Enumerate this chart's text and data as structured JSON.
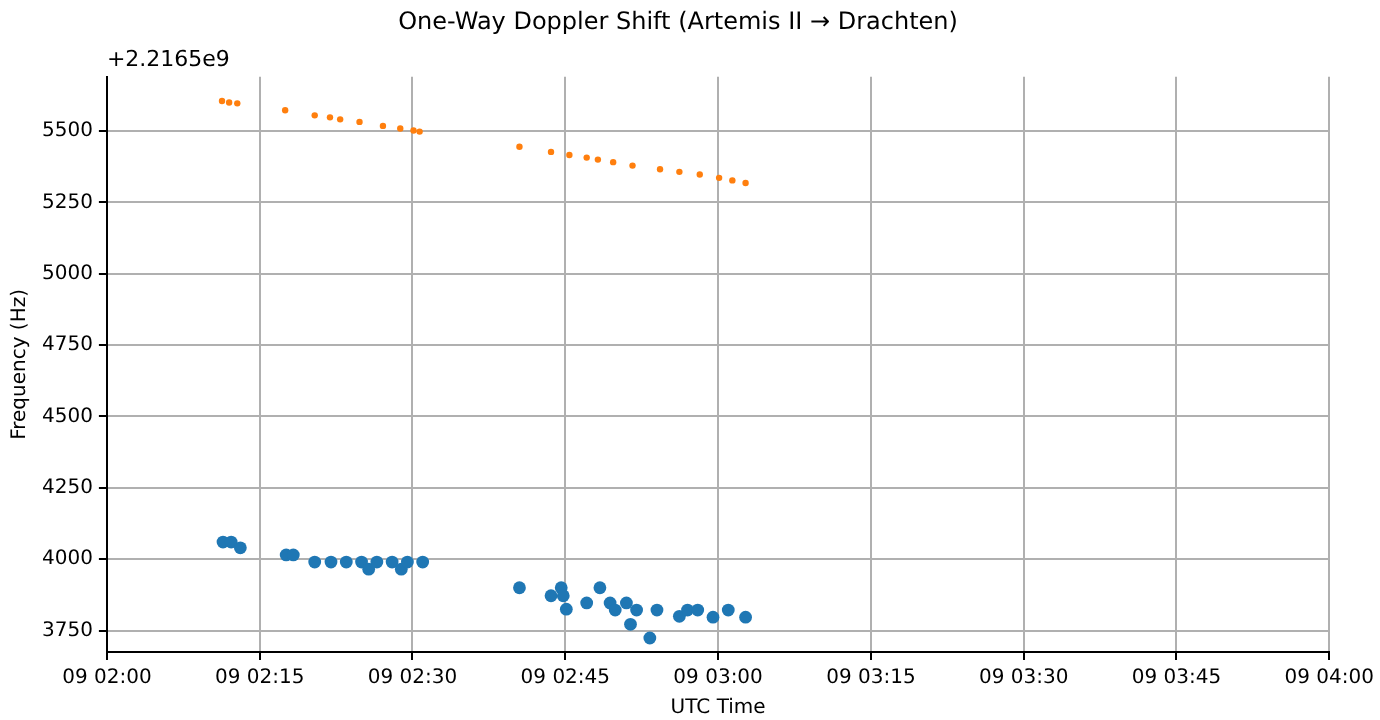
{
  "chart_data": {
    "type": "scatter",
    "title": "One-Way Doppler Shift (Artemis II → Drachten)",
    "xlabel": "UTC Time",
    "ylabel": "Frequency (Hz)",
    "annotations": [
      "+2.2165e9"
    ],
    "xlim": [
      "--04-09T02:00",
      "--04-09T04:00"
    ],
    "xticks": [
      {
        "value": "--04-09T02:00",
        "label": "09 02:00"
      },
      {
        "value": "--04-09T02:15",
        "label": "09 02:15"
      },
      {
        "value": "--04-09T02:30",
        "label": "09 02:30"
      },
      {
        "value": "--04-09T02:45",
        "label": "09 02:45"
      },
      {
        "value": "--04-09T03:00",
        "label": "09 03:00"
      },
      {
        "value": "--04-09T03:15",
        "label": "09 03:15"
      },
      {
        "value": "--04-09T03:30",
        "label": "09 03:30"
      },
      {
        "value": "--04-09T03:45",
        "label": "09 03:45"
      },
      {
        "value": "--04-09T04:00",
        "label": "09 04:00"
      }
    ],
    "ylim": [
      3675,
      5690
    ],
    "yticks": [
      3750,
      4000,
      4250,
      4500,
      4750,
      5000,
      5250,
      5500
    ],
    "grid": true,
    "legend": false,
    "marker": "circle",
    "series": [
      {
        "color": "#ff7f0e",
        "x": [
          "--04-09T02:11:18",
          "--04-09T02:12:00",
          "--04-09T02:12:48",
          "--04-09T02:17:30",
          "--04-09T02:20:24",
          "--04-09T02:21:54",
          "--04-09T02:22:54",
          "--04-09T02:24:48",
          "--04-09T02:27:06",
          "--04-09T02:28:48",
          "--04-09T02:30:06",
          "--04-09T02:30:42",
          "--04-09T02:40:30",
          "--04-09T02:43:36",
          "--04-09T02:45:24",
          "--04-09T02:47:06",
          "--04-09T02:48:12",
          "--04-09T02:49:42",
          "--04-09T02:51:36",
          "--04-09T02:54:18",
          "--04-09T02:56:12",
          "--04-09T02:58:12",
          "--04-09T03:00:06",
          "--04-09T03:01:24",
          "--04-09T03:02:42"
        ],
        "values": [
          5605,
          5600,
          5597,
          5573,
          5555,
          5548,
          5541,
          5532,
          5518,
          5509,
          5502,
          5498,
          5445,
          5427,
          5416,
          5407,
          5400,
          5391,
          5379,
          5366,
          5357,
          5348,
          5336,
          5327,
          5318
        ]
      },
      {
        "color": "#1f77b4",
        "x": [
          "--04-09T02:11:24",
          "--04-09T02:12:12",
          "--04-09T02:13:06",
          "--04-09T02:17:36",
          "--04-09T02:18:18",
          "--04-09T02:20:24",
          "--04-09T02:22:00",
          "--04-09T02:23:30",
          "--04-09T02:25:00",
          "--04-09T02:25:42",
          "--04-09T02:26:30",
          "--04-09T02:28:00",
          "--04-09T02:28:54",
          "--04-09T02:29:30",
          "--04-09T02:31:00",
          "--04-09T02:40:30",
          "--04-09T02:43:36",
          "--04-09T02:44:36",
          "--04-09T02:44:48",
          "--04-09T02:45:06",
          "--04-09T02:47:06",
          "--04-09T02:48:24",
          "--04-09T02:49:24",
          "--04-09T02:49:54",
          "--04-09T02:51:00",
          "--04-09T02:51:24",
          "--04-09T02:52:00",
          "--04-09T02:53:18",
          "--04-09T02:54:00",
          "--04-09T02:56:12",
          "--04-09T02:57:00",
          "--04-09T02:58:00",
          "--04-09T02:59:30",
          "--04-09T03:01:00",
          "--04-09T03:02:42"
        ],
        "values": [
          4060,
          4060,
          4040,
          4015,
          4015,
          3990,
          3990,
          3990,
          3990,
          3965,
          3990,
          3990,
          3965,
          3990,
          3990,
          3900,
          3872,
          3900,
          3872,
          3825,
          3847,
          3900,
          3847,
          3822,
          3847,
          3772,
          3822,
          3724,
          3822,
          3800,
          3822,
          3822,
          3797,
          3822,
          3797
        ]
      }
    ]
  }
}
